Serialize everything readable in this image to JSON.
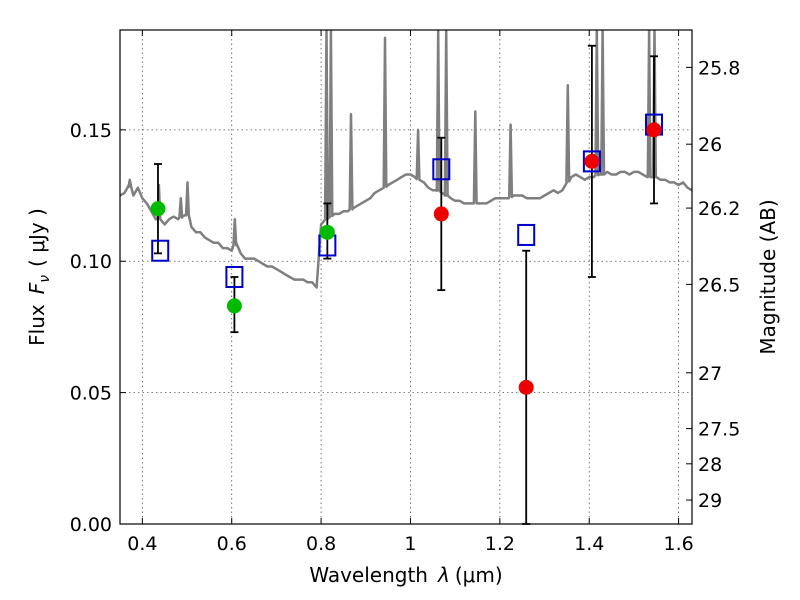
{
  "chart_data": {
    "type": "scatter",
    "xlabel_text": "Wavelength",
    "xlabel_symbol": "λ",
    "xlabel_unit": "(μm)",
    "ylabel_text": "Flux",
    "ylabel_symbol": "F",
    "ylabel_subscript": "ν",
    "ylabel_unit": "( μJy )",
    "y2label": "Magnitude (AB)",
    "xlim": [
      0.35,
      1.63
    ],
    "ylim": [
      0.0,
      0.188
    ],
    "grid": true,
    "x_ticks": [
      0.4,
      0.6,
      0.8,
      1.0,
      1.2,
      1.4,
      1.6
    ],
    "x_tick_labels": [
      "0.4",
      "0.6",
      "0.8",
      "1",
      "1.2",
      "1.4",
      "1.6"
    ],
    "y_ticks": [
      0.0,
      0.05,
      0.1,
      0.15
    ],
    "y_tick_labels": [
      "0.00",
      "0.05",
      "0.10",
      "0.15"
    ],
    "y2_ticks": [
      {
        "label": "25.8",
        "mag": 25.8
      },
      {
        "label": "26",
        "mag": 26.0
      },
      {
        "label": "26.2",
        "mag": 26.2
      },
      {
        "label": "26.5",
        "mag": 26.5
      },
      {
        "label": "27",
        "mag": 27.0
      },
      {
        "label": "27.5",
        "mag": 27.5
      },
      {
        "label": "28",
        "mag": 28.0
      },
      {
        "label": "29",
        "mag": 29.0
      }
    ],
    "colors": {
      "template": "#7f7f7f",
      "green": "#00bb00",
      "red": "#ee0000",
      "box": "#0000cc",
      "error": "#000000",
      "grid": "#555555"
    },
    "series": [
      {
        "name": "observed-green",
        "color": "#00bb00",
        "points": [
          {
            "x": 0.435,
            "y": 0.12,
            "lo": 0.103,
            "hi": 0.137
          },
          {
            "x": 0.606,
            "y": 0.083,
            "lo": 0.073,
            "hi": 0.094
          },
          {
            "x": 0.814,
            "y": 0.111,
            "lo": 0.101,
            "hi": 0.122
          }
        ]
      },
      {
        "name": "observed-red",
        "color": "#ee0000",
        "points": [
          {
            "x": 1.069,
            "y": 0.118,
            "lo": 0.089,
            "hi": 0.147
          },
          {
            "x": 1.259,
            "y": 0.052,
            "lo": 0.0,
            "hi": 0.104
          },
          {
            "x": 1.406,
            "y": 0.138,
            "lo": 0.094,
            "hi": 0.182
          },
          {
            "x": 1.545,
            "y": 0.15,
            "lo": 0.122,
            "hi": 0.178
          }
        ]
      },
      {
        "name": "model-boxes",
        "color": "#0000cc",
        "points": [
          {
            "x": 0.44,
            "y": 0.104
          },
          {
            "x": 0.606,
            "y": 0.094
          },
          {
            "x": 0.814,
            "y": 0.106
          },
          {
            "x": 1.069,
            "y": 0.135
          },
          {
            "x": 1.259,
            "y": 0.11
          },
          {
            "x": 1.406,
            "y": 0.138
          },
          {
            "x": 1.545,
            "y": 0.152
          }
        ]
      }
    ],
    "template_spectrum": {
      "name": "galaxy-template",
      "x": [
        0.35,
        0.36,
        0.37,
        0.38,
        0.39,
        0.4,
        0.41,
        0.42,
        0.43,
        0.44,
        0.45,
        0.46,
        0.47,
        0.48,
        0.49,
        0.5,
        0.51,
        0.52,
        0.53,
        0.54,
        0.55,
        0.56,
        0.57,
        0.58,
        0.59,
        0.6,
        0.61,
        0.62,
        0.63,
        0.64,
        0.65,
        0.66,
        0.67,
        0.68,
        0.69,
        0.7,
        0.71,
        0.72,
        0.73,
        0.74,
        0.75,
        0.76,
        0.77,
        0.78,
        0.79,
        0.8,
        0.81,
        0.82,
        0.83,
        0.84,
        0.85,
        0.86,
        0.87,
        0.88,
        0.89,
        0.9,
        0.91,
        0.92,
        0.93,
        0.94,
        0.95,
        0.96,
        0.97,
        0.98,
        0.99,
        1.0,
        1.01,
        1.02,
        1.03,
        1.04,
        1.05,
        1.06,
        1.07,
        1.08,
        1.09,
        1.1,
        1.11,
        1.12,
        1.13,
        1.14,
        1.15,
        1.16,
        1.17,
        1.18,
        1.19,
        1.2,
        1.21,
        1.22,
        1.23,
        1.24,
        1.25,
        1.26,
        1.27,
        1.28,
        1.29,
        1.3,
        1.31,
        1.32,
        1.33,
        1.34,
        1.35,
        1.36,
        1.37,
        1.38,
        1.39,
        1.4,
        1.41,
        1.42,
        1.43,
        1.44,
        1.45,
        1.46,
        1.47,
        1.48,
        1.49,
        1.5,
        1.51,
        1.52,
        1.53,
        1.54,
        1.55,
        1.56,
        1.57,
        1.58,
        1.59,
        1.6,
        1.61,
        1.62,
        1.63
      ],
      "y": [
        0.125,
        0.126,
        0.129,
        0.125,
        0.128,
        0.124,
        0.122,
        0.119,
        0.116,
        0.116,
        0.114,
        0.116,
        0.117,
        0.116,
        0.117,
        0.118,
        0.113,
        0.111,
        0.111,
        0.109,
        0.108,
        0.107,
        0.107,
        0.105,
        0.105,
        0.104,
        0.107,
        0.103,
        0.101,
        0.101,
        0.101,
        0.1,
        0.099,
        0.098,
        0.098,
        0.097,
        0.096,
        0.095,
        0.094,
        0.093,
        0.093,
        0.093,
        0.092,
        0.092,
        0.09,
        0.114,
        0.116,
        0.117,
        0.118,
        0.118,
        0.119,
        0.119,
        0.12,
        0.121,
        0.122,
        0.123,
        0.124,
        0.126,
        0.127,
        0.128,
        0.129,
        0.13,
        0.131,
        0.132,
        0.133,
        0.133,
        0.132,
        0.131,
        0.13,
        0.128,
        0.127,
        0.127,
        0.126,
        0.125,
        0.124,
        0.123,
        0.123,
        0.122,
        0.122,
        0.122,
        0.122,
        0.122,
        0.122,
        0.123,
        0.124,
        0.124,
        0.124,
        0.124,
        0.125,
        0.125,
        0.125,
        0.124,
        0.124,
        0.124,
        0.124,
        0.125,
        0.126,
        0.127,
        0.126,
        0.127,
        0.13,
        0.132,
        0.133,
        0.132,
        0.131,
        0.132,
        0.132,
        0.133,
        0.133,
        0.134,
        0.133,
        0.133,
        0.134,
        0.134,
        0.133,
        0.134,
        0.134,
        0.133,
        0.132,
        0.132,
        0.132,
        0.131,
        0.131,
        0.13,
        0.13,
        0.129,
        0.13,
        0.128,
        0.127
      ],
      "emission_lines": [
        {
          "x": 0.372,
          "peak": 0.131
        },
        {
          "x": 0.437,
          "peak": 0.129
        },
        {
          "x": 0.486,
          "peak": 0.124
        },
        {
          "x": 0.501,
          "peak": 0.13
        },
        {
          "x": 0.607,
          "peak": 0.116
        },
        {
          "x": 0.812,
          "peak": 0.188
        },
        {
          "x": 0.822,
          "peak": 0.188
        },
        {
          "x": 0.867,
          "peak": 0.156
        },
        {
          "x": 0.943,
          "peak": 0.185
        },
        {
          "x": 1.017,
          "peak": 0.15
        },
        {
          "x": 1.062,
          "peak": 0.188
        },
        {
          "x": 1.08,
          "peak": 0.188
        },
        {
          "x": 1.145,
          "peak": 0.157
        },
        {
          "x": 1.224,
          "peak": 0.152
        },
        {
          "x": 1.352,
          "peak": 0.167
        },
        {
          "x": 1.417,
          "peak": 0.188
        },
        {
          "x": 1.43,
          "peak": 0.188
        },
        {
          "x": 1.534,
          "peak": 0.188
        },
        {
          "x": 1.546,
          "peak": 0.188
        }
      ]
    }
  }
}
